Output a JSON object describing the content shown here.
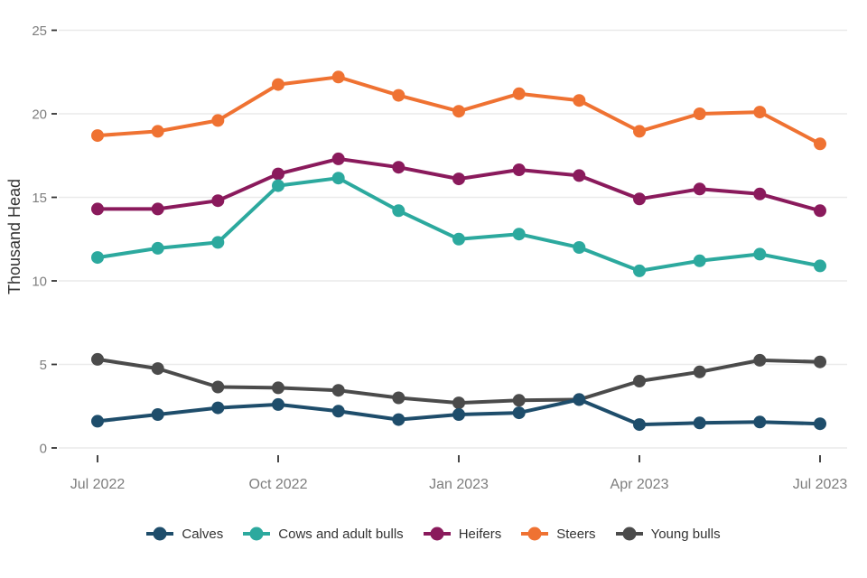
{
  "chart_data": {
    "type": "line",
    "title": "",
    "xlabel": "",
    "ylabel": "Thousand Head",
    "ylim": [
      0,
      25
    ],
    "yticks": [
      0,
      5,
      10,
      15,
      20,
      25
    ],
    "grid": "horizontal-only",
    "legend_position": "bottom",
    "x": [
      "Jul 2022",
      "Aug 2022",
      "Sep 2022",
      "Oct 2022",
      "Nov 2022",
      "Dec 2022",
      "Jan 2023",
      "Feb 2023",
      "Mar 2023",
      "Apr 2023",
      "May 2023",
      "Jun 2023",
      "Jul 2023"
    ],
    "xtick_labels": [
      "Jul 2022",
      "Oct 2022",
      "Jan 2023",
      "Apr 2023",
      "Jul 2023"
    ],
    "xtick_indices": [
      0,
      3,
      6,
      9,
      12
    ],
    "series": [
      {
        "name": "Calves",
        "color": "#1E4D6B",
        "values": [
          1.6,
          2.0,
          2.4,
          2.6,
          2.2,
          1.7,
          2.0,
          2.1,
          2.9,
          1.4,
          1.5,
          1.55,
          1.45
        ]
      },
      {
        "name": "Cows and adult bulls",
        "color": "#2CA99E",
        "values": [
          11.4,
          11.95,
          12.3,
          15.7,
          16.15,
          14.2,
          12.5,
          12.8,
          12.0,
          10.6,
          11.2,
          11.6,
          10.9
        ]
      },
      {
        "name": "Heifers",
        "color": "#8A1A5C",
        "values": [
          14.3,
          14.3,
          14.8,
          16.4,
          17.3,
          16.8,
          16.1,
          16.65,
          16.3,
          14.9,
          15.5,
          15.2,
          14.2
        ]
      },
      {
        "name": "Steers",
        "color": "#EF7232",
        "values": [
          18.7,
          18.95,
          19.6,
          21.75,
          22.2,
          21.1,
          20.15,
          21.2,
          20.8,
          18.95,
          20.0,
          20.1,
          18.2
        ]
      },
      {
        "name": "Young bulls",
        "color": "#4B4B4B",
        "values": [
          5.3,
          4.75,
          3.65,
          3.6,
          3.45,
          3.0,
          2.7,
          2.85,
          2.9,
          4.0,
          4.55,
          5.25,
          5.15
        ]
      }
    ],
    "draw_order": [
      "Steers",
      "Heifers",
      "Cows and adult bulls",
      "Young bulls",
      "Calves"
    ]
  },
  "colors": {
    "background": "#FFFFFF",
    "gridline": "#EAEAEA",
    "tick_mark": "#333333",
    "tick_label": "#7D7D7D",
    "axis_title": "#333333",
    "legend_text": "#333333"
  }
}
